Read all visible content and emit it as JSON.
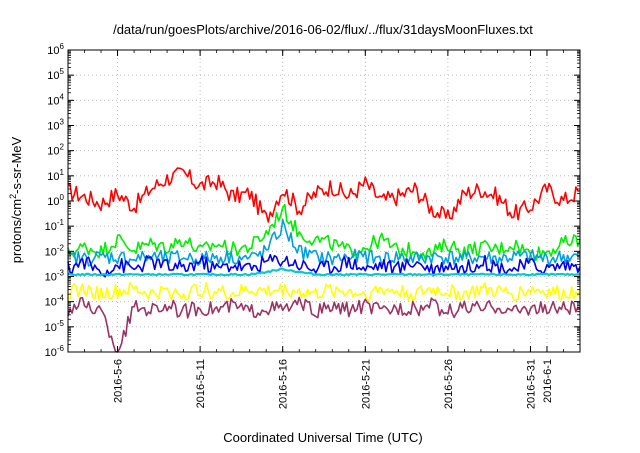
{
  "chart_data": {
    "type": "line",
    "title": "/data/run/goesPlots/archive/2016-06-02/flux/../flux/31daysMoonFluxes.txt",
    "xlabel": "Coordinated Universal Time (UTC)",
    "ylabel": {
      "pre": "protons/cm",
      "sup": "2",
      "post": "-s-sr-MeV"
    },
    "y_scale": "log",
    "ylim": [
      1e-06,
      1000000.0
    ],
    "xlim": [
      "2016-05-03",
      "2016-06-03"
    ],
    "grid": true,
    "legend": "none",
    "y_ticks": [
      {
        "base": "10",
        "exp": "-6",
        "value": 1e-06
      },
      {
        "base": "10",
        "exp": "-5",
        "value": 1e-05
      },
      {
        "base": "10",
        "exp": "-4",
        "value": 0.0001
      },
      {
        "base": "10",
        "exp": "-3",
        "value": 0.001
      },
      {
        "base": "10",
        "exp": "-2",
        "value": 0.01
      },
      {
        "base": "10",
        "exp": "-1",
        "value": 0.1
      },
      {
        "base": "10",
        "exp": "0",
        "value": 1
      },
      {
        "base": "10",
        "exp": "1",
        "value": 10
      },
      {
        "base": "10",
        "exp": "2",
        "value": 100
      },
      {
        "base": "10",
        "exp": "3",
        "value": 1000
      },
      {
        "base": "10",
        "exp": "4",
        "value": 10000
      },
      {
        "base": "10",
        "exp": "5",
        "value": 100000
      },
      {
        "base": "10",
        "exp": "6",
        "value": 1000000
      }
    ],
    "x_ticks": [
      {
        "label": "2016-5-6",
        "date": "2016-05-06"
      },
      {
        "label": "2016-5-11",
        "date": "2016-05-11"
      },
      {
        "label": "2016-5-16",
        "date": "2016-05-16"
      },
      {
        "label": "2016-5-21",
        "date": "2016-05-21"
      },
      {
        "label": "2016-5-26",
        "date": "2016-05-26"
      },
      {
        "label": "2016-5-31",
        "date": "2016-05-31"
      },
      {
        "label": "2016-6-1",
        "date": "2016-06-01"
      }
    ],
    "series": [
      {
        "color": "#ff0000",
        "x": [
          "2016-05-03",
          "2016-05-04",
          "2016-05-05",
          "2016-05-06",
          "2016-05-07",
          "2016-05-08",
          "2016-05-09",
          "2016-05-10",
          "2016-05-11",
          "2016-05-12",
          "2016-05-13",
          "2016-05-14",
          "2016-05-15",
          "2016-05-16",
          "2016-05-17",
          "2016-05-18",
          "2016-05-19",
          "2016-05-20",
          "2016-05-21",
          "2016-05-22",
          "2016-05-23",
          "2016-05-24",
          "2016-05-25",
          "2016-05-26",
          "2016-05-27",
          "2016-05-28",
          "2016-05-29",
          "2016-05-30",
          "2016-05-31",
          "2016-06-01",
          "2016-06-02",
          "2016-06-03"
        ],
        "values": [
          2.5,
          1.5,
          0.8,
          2,
          0.6,
          3,
          8,
          12,
          4,
          6,
          1.5,
          2,
          0.2,
          3,
          0.5,
          2,
          4,
          1.5,
          5,
          1,
          1.5,
          3,
          0.5,
          0.2,
          2,
          3,
          1.5,
          0.3,
          0.6,
          3,
          1,
          2.5
        ]
      },
      {
        "color": "#00ee00",
        "x": [
          "2016-05-03",
          "2016-05-04",
          "2016-05-05",
          "2016-05-06",
          "2016-05-07",
          "2016-05-08",
          "2016-05-09",
          "2016-05-10",
          "2016-05-11",
          "2016-05-12",
          "2016-05-13",
          "2016-05-14",
          "2016-05-15",
          "2016-05-16",
          "2016-05-17",
          "2016-05-18",
          "2016-05-19",
          "2016-05-20",
          "2016-05-21",
          "2016-05-22",
          "2016-05-23",
          "2016-05-24",
          "2016-05-25",
          "2016-05-26",
          "2016-05-27",
          "2016-05-28",
          "2016-05-29",
          "2016-05-30",
          "2016-05-31",
          "2016-06-01",
          "2016-06-02",
          "2016-06-03"
        ],
        "values": [
          0.008,
          0.015,
          0.01,
          0.03,
          0.012,
          0.02,
          0.015,
          0.03,
          0.01,
          0.02,
          0.012,
          0.015,
          0.05,
          0.5,
          0.05,
          0.03,
          0.02,
          0.01,
          0.015,
          0.03,
          0.01,
          0.012,
          0.008,
          0.02,
          0.01,
          0.015,
          0.012,
          0.02,
          0.008,
          0.01,
          0.02,
          0.03
        ]
      },
      {
        "color": "#00a0e0",
        "x": [
          "2016-05-03",
          "2016-05-04",
          "2016-05-05",
          "2016-05-06",
          "2016-05-07",
          "2016-05-08",
          "2016-05-09",
          "2016-05-10",
          "2016-05-11",
          "2016-05-12",
          "2016-05-13",
          "2016-05-14",
          "2016-05-15",
          "2016-05-16",
          "2016-05-17",
          "2016-05-18",
          "2016-05-19",
          "2016-05-20",
          "2016-05-21",
          "2016-05-22",
          "2016-05-23",
          "2016-05-24",
          "2016-05-25",
          "2016-05-26",
          "2016-05-27",
          "2016-05-28",
          "2016-05-29",
          "2016-05-30",
          "2016-05-31",
          "2016-06-01",
          "2016-06-02",
          "2016-06-03"
        ],
        "values": [
          0.006,
          0.005,
          0.006,
          0.006,
          0.005,
          0.006,
          0.005,
          0.006,
          0.005,
          0.006,
          0.006,
          0.005,
          0.01,
          0.1,
          0.01,
          0.006,
          0.005,
          0.006,
          0.006,
          0.005,
          0.006,
          0.005,
          0.006,
          0.006,
          0.005,
          0.006,
          0.005,
          0.006,
          0.006,
          0.005,
          0.006,
          0.006
        ]
      },
      {
        "color": "#0000ee",
        "x": [
          "2016-05-03",
          "2016-05-04",
          "2016-05-05",
          "2016-05-06",
          "2016-05-07",
          "2016-05-08",
          "2016-05-09",
          "2016-05-10",
          "2016-05-11",
          "2016-05-12",
          "2016-05-13",
          "2016-05-14",
          "2016-05-15",
          "2016-05-16",
          "2016-05-17",
          "2016-05-18",
          "2016-05-19",
          "2016-05-20",
          "2016-05-21",
          "2016-05-22",
          "2016-05-23",
          "2016-05-24",
          "2016-05-25",
          "2016-05-26",
          "2016-05-27",
          "2016-05-28",
          "2016-05-29",
          "2016-05-30",
          "2016-05-31",
          "2016-06-01",
          "2016-06-02",
          "2016-06-03"
        ],
        "values": [
          0.002,
          0.004,
          0.0015,
          0.003,
          0.002,
          0.004,
          0.0025,
          0.002,
          0.004,
          0.002,
          0.003,
          0.002,
          0.004,
          0.005,
          0.003,
          0.002,
          0.0025,
          0.004,
          0.002,
          0.003,
          0.002,
          0.004,
          0.002,
          0.003,
          0.002,
          0.004,
          0.0025,
          0.002,
          0.003,
          0.002,
          0.003,
          0.0025
        ]
      },
      {
        "color": "#00cccc",
        "x": [
          "2016-05-03",
          "2016-05-04",
          "2016-05-05",
          "2016-05-06",
          "2016-05-07",
          "2016-05-08",
          "2016-05-09",
          "2016-05-10",
          "2016-05-11",
          "2016-05-12",
          "2016-05-13",
          "2016-05-14",
          "2016-05-15",
          "2016-05-16",
          "2016-05-17",
          "2016-05-18",
          "2016-05-19",
          "2016-05-20",
          "2016-05-21",
          "2016-05-22",
          "2016-05-23",
          "2016-05-24",
          "2016-05-25",
          "2016-05-26",
          "2016-05-27",
          "2016-05-28",
          "2016-05-29",
          "2016-05-30",
          "2016-05-31",
          "2016-06-01",
          "2016-06-02",
          "2016-06-03"
        ],
        "values": [
          0.0012,
          0.0012,
          0.0012,
          0.0012,
          0.0012,
          0.0012,
          0.0012,
          0.0012,
          0.0012,
          0.0012,
          0.0012,
          0.0012,
          0.0015,
          0.002,
          0.0015,
          0.0012,
          0.0012,
          0.0012,
          0.0012,
          0.0012,
          0.0012,
          0.0012,
          0.0012,
          0.0012,
          0.0012,
          0.0012,
          0.0012,
          0.0012,
          0.0012,
          0.0012,
          0.0012,
          0.0012
        ]
      },
      {
        "color": "#ffff00",
        "x": [
          "2016-05-03",
          "2016-05-04",
          "2016-05-05",
          "2016-05-06",
          "2016-05-07",
          "2016-05-08",
          "2016-05-09",
          "2016-05-10",
          "2016-05-11",
          "2016-05-12",
          "2016-05-13",
          "2016-05-14",
          "2016-05-15",
          "2016-05-16",
          "2016-05-17",
          "2016-05-18",
          "2016-05-19",
          "2016-05-20",
          "2016-05-21",
          "2016-05-22",
          "2016-05-23",
          "2016-05-24",
          "2016-05-25",
          "2016-05-26",
          "2016-05-27",
          "2016-05-28",
          "2016-05-29",
          "2016-05-30",
          "2016-05-31",
          "2016-06-01",
          "2016-06-02",
          "2016-06-03"
        ],
        "values": [
          0.00025,
          0.0003,
          0.0002,
          0.00025,
          0.0003,
          0.0002,
          0.00025,
          0.0002,
          0.0003,
          0.00025,
          0.0002,
          0.0003,
          0.00025,
          0.0003,
          0.00025,
          0.0002,
          0.0003,
          0.00025,
          0.0002,
          0.0003,
          0.00025,
          0.0002,
          0.0003,
          0.00025,
          0.0002,
          0.0003,
          0.00025,
          0.0002,
          0.0003,
          0.00025,
          0.0002,
          0.0003
        ]
      },
      {
        "color": "#993366",
        "x": [
          "2016-05-03",
          "2016-05-04",
          "2016-05-05",
          "2016-05-06",
          "2016-05-07",
          "2016-05-08",
          "2016-05-09",
          "2016-05-10",
          "2016-05-11",
          "2016-05-12",
          "2016-05-13",
          "2016-05-14",
          "2016-05-15",
          "2016-05-16",
          "2016-05-17",
          "2016-05-18",
          "2016-05-19",
          "2016-05-20",
          "2016-05-21",
          "2016-05-22",
          "2016-05-23",
          "2016-05-24",
          "2016-05-25",
          "2016-05-26",
          "2016-05-27",
          "2016-05-28",
          "2016-05-29",
          "2016-05-30",
          "2016-05-31",
          "2016-06-01",
          "2016-06-02",
          "2016-06-03"
        ],
        "values": [
          5e-05,
          8e-05,
          4e-05,
          1e-06,
          6e-05,
          5e-05,
          7e-05,
          4e-05,
          6e-05,
          5e-05,
          7e-05,
          4e-05,
          6e-05,
          5e-05,
          8e-05,
          4e-05,
          6e-05,
          5e-05,
          7e-05,
          4e-05,
          6e-05,
          5e-05,
          7e-05,
          4e-05,
          6e-05,
          5e-05,
          7e-05,
          4e-05,
          6e-05,
          5e-05,
          6e-05,
          5e-05
        ]
      }
    ]
  }
}
